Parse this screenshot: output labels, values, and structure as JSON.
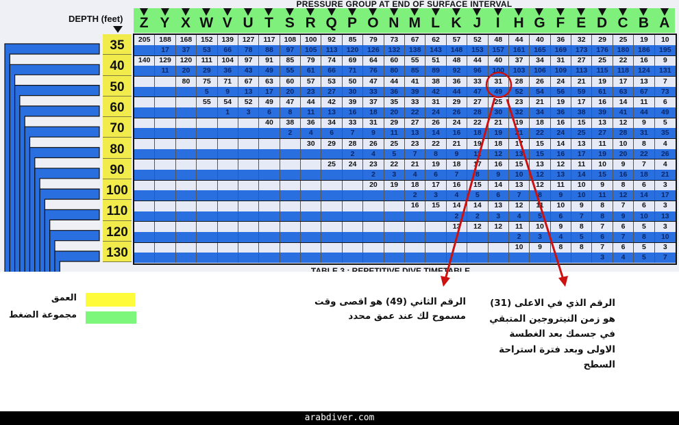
{
  "header": {
    "title": "PRESSURE GROUP AT END OF SURFACE INTERVAL",
    "depth_label": "DEPTH (feet)",
    "bottom_title": "TABLE 3 : REPETITIVE DIVE TIMETABLE"
  },
  "colors": {
    "depth": "#f1eb4c",
    "pressure_group": "#80f07c",
    "blue_row": "#2a6fe0",
    "annotation": "#cc1111"
  },
  "groups": [
    "Z",
    "Y",
    "X",
    "W",
    "V",
    "U",
    "T",
    "S",
    "R",
    "Q",
    "P",
    "O",
    "N",
    "M",
    "L",
    "K",
    "J",
    "I",
    "H",
    "G",
    "F",
    "E",
    "D",
    "C",
    "B",
    "A"
  ],
  "depths": [
    {
      "depth": "35",
      "top": [
        205,
        188,
        168,
        152,
        139,
        127,
        117,
        108,
        100,
        92,
        85,
        79,
        73,
        67,
        62,
        57,
        52,
        48,
        44,
        40,
        36,
        32,
        29,
        25,
        19,
        10
      ],
      "bottom": [
        null,
        17,
        37,
        53,
        66,
        78,
        88,
        97,
        105,
        113,
        120,
        126,
        132,
        138,
        143,
        148,
        153,
        157,
        161,
        165,
        169,
        173,
        176,
        180,
        186,
        195
      ]
    },
    {
      "depth": "40",
      "top": [
        140,
        129,
        120,
        111,
        104,
        97,
        91,
        85,
        79,
        74,
        69,
        64,
        60,
        55,
        51,
        48,
        44,
        40,
        37,
        34,
        31,
        27,
        25,
        22,
        16,
        9
      ],
      "bottom": [
        null,
        11,
        20,
        29,
        36,
        43,
        49,
        55,
        61,
        66,
        71,
        76,
        80,
        85,
        89,
        92,
        96,
        100,
        103,
        106,
        109,
        113,
        115,
        118,
        124,
        131
      ]
    },
    {
      "depth": "50",
      "top": [
        null,
        null,
        80,
        75,
        71,
        67,
        63,
        60,
        57,
        53,
        50,
        47,
        44,
        41,
        38,
        36,
        33,
        31,
        28,
        26,
        24,
        21,
        19,
        17,
        13,
        7
      ],
      "bottom": [
        null,
        null,
        null,
        5,
        9,
        13,
        17,
        20,
        23,
        27,
        30,
        33,
        36,
        39,
        42,
        44,
        47,
        49,
        52,
        54,
        56,
        59,
        61,
        63,
        67,
        73
      ]
    },
    {
      "depth": "60",
      "top": [
        null,
        null,
        null,
        55,
        54,
        52,
        49,
        47,
        44,
        42,
        39,
        37,
        35,
        33,
        31,
        29,
        27,
        25,
        23,
        21,
        19,
        17,
        16,
        14,
        11,
        6
      ],
      "bottom": [
        null,
        null,
        null,
        null,
        1,
        3,
        6,
        8,
        11,
        13,
        16,
        18,
        20,
        22,
        24,
        26,
        28,
        30,
        32,
        34,
        36,
        38,
        39,
        41,
        44,
        49
      ]
    },
    {
      "depth": "70",
      "top": [
        null,
        null,
        null,
        null,
        null,
        null,
        40,
        38,
        36,
        34,
        33,
        31,
        29,
        27,
        26,
        24,
        22,
        21,
        19,
        18,
        16,
        15,
        13,
        12,
        9,
        5
      ],
      "bottom": [
        null,
        null,
        null,
        null,
        null,
        null,
        null,
        2,
        4,
        6,
        7,
        9,
        11,
        13,
        14,
        16,
        18,
        19,
        21,
        22,
        24,
        25,
        27,
        28,
        31,
        35
      ]
    },
    {
      "depth": "80",
      "top": [
        null,
        null,
        null,
        null,
        null,
        null,
        null,
        null,
        30,
        29,
        28,
        26,
        25,
        23,
        22,
        21,
        19,
        18,
        17,
        15,
        14,
        13,
        11,
        10,
        8,
        4
      ],
      "bottom": [
        null,
        null,
        null,
        null,
        null,
        null,
        null,
        null,
        null,
        null,
        2,
        4,
        5,
        7,
        8,
        9,
        11,
        12,
        13,
        15,
        16,
        17,
        19,
        20,
        22,
        26
      ]
    },
    {
      "depth": "90",
      "top": [
        null,
        null,
        null,
        null,
        null,
        null,
        null,
        null,
        null,
        25,
        24,
        23,
        22,
        21,
        19,
        18,
        17,
        16,
        15,
        13,
        12,
        11,
        10,
        9,
        7,
        4
      ],
      "bottom": [
        null,
        null,
        null,
        null,
        null,
        null,
        null,
        null,
        null,
        null,
        null,
        2,
        3,
        4,
        6,
        7,
        8,
        9,
        10,
        12,
        13,
        14,
        15,
        16,
        18,
        21
      ]
    },
    {
      "depth": "100",
      "top": [
        null,
        null,
        null,
        null,
        null,
        null,
        null,
        null,
        null,
        null,
        null,
        20,
        19,
        18,
        17,
        16,
        15,
        14,
        13,
        12,
        11,
        10,
        9,
        8,
        6,
        3
      ],
      "bottom": [
        null,
        null,
        null,
        null,
        null,
        null,
        null,
        null,
        null,
        null,
        null,
        null,
        null,
        2,
        3,
        4,
        5,
        6,
        7,
        8,
        9,
        10,
        11,
        12,
        14,
        17
      ]
    },
    {
      "depth": "110",
      "top": [
        null,
        null,
        null,
        null,
        null,
        null,
        null,
        null,
        null,
        null,
        null,
        null,
        null,
        16,
        15,
        14,
        14,
        13,
        12,
        11,
        10,
        9,
        8,
        7,
        6,
        3
      ],
      "bottom": [
        null,
        null,
        null,
        null,
        null,
        null,
        null,
        null,
        null,
        null,
        null,
        null,
        null,
        null,
        null,
        2,
        2,
        3,
        4,
        5,
        6,
        7,
        8,
        9,
        10,
        13
      ]
    },
    {
      "depth": "120",
      "top": [
        null,
        null,
        null,
        null,
        null,
        null,
        null,
        null,
        null,
        null,
        null,
        null,
        null,
        null,
        null,
        13,
        12,
        12,
        11,
        10,
        9,
        8,
        7,
        6,
        5,
        3
      ],
      "bottom": [
        null,
        null,
        null,
        null,
        null,
        null,
        null,
        null,
        null,
        null,
        null,
        null,
        null,
        null,
        null,
        null,
        null,
        null,
        2,
        3,
        4,
        5,
        6,
        7,
        8,
        10
      ]
    },
    {
      "depth": "130",
      "top": [
        null,
        null,
        null,
        null,
        null,
        null,
        null,
        null,
        null,
        null,
        null,
        null,
        null,
        null,
        null,
        null,
        null,
        null,
        10,
        9,
        8,
        8,
        7,
        6,
        5,
        3
      ],
      "bottom": [
        null,
        null,
        null,
        null,
        null,
        null,
        null,
        null,
        null,
        null,
        null,
        null,
        null,
        null,
        null,
        null,
        null,
        null,
        null,
        null,
        null,
        null,
        3,
        4,
        5,
        7
      ]
    }
  ],
  "legend": {
    "depth": "العمق",
    "pressure_group": "مجموعة الضغط"
  },
  "notes": {
    "second_number": [
      "الرقم الثاني (49) هو اقصى وقت",
      "مسموح لك عند عمق محدد"
    ],
    "top_number": [
      "الرقم الذي في الاعلى (31)",
      "هو زمن النيتروجين المتبقي",
      "في جسمك بعد الغطسة",
      "الاولى وبعد فترة استراحة",
      "السطح"
    ]
  },
  "footer": {
    "site": "arabdiver.com"
  }
}
